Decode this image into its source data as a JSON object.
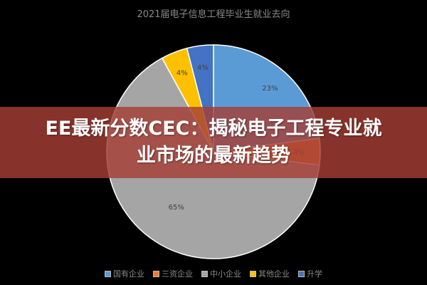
{
  "chart_data": {
    "type": "pie",
    "title": "2021届电子信息工程毕业生就业去向",
    "categories": [
      "国有企业",
      "三资企业",
      "中小企业",
      "其他企业",
      "升学"
    ],
    "values": [
      23,
      4,
      65,
      4,
      4
    ],
    "labels": [
      "23%",
      "4%",
      "65%",
      "4%",
      "4%"
    ],
    "colors": [
      "#5b9bd5",
      "#ed7d31",
      "#a5a5a5",
      "#ffc000",
      "#4472c4"
    ],
    "start_angle": "12 o'clock, clockwise",
    "legend_position": "bottom"
  },
  "banner": {
    "line1": "EE最新分数CEC：揭秘电子工程专业就",
    "line2": "业市场的最新趋势"
  }
}
